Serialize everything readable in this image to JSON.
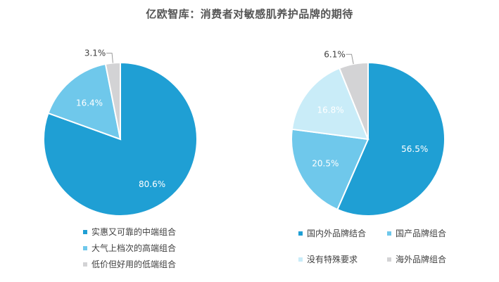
{
  "title": "亿欧智库：消费者对敏感肌养护品牌的期待",
  "chart_data": [
    {
      "type": "pie",
      "title": "",
      "start_angle_deg": 0,
      "direction": "clockwise",
      "categories": [
        "实惠又可靠的中端组合",
        "大气上档次的高端组合",
        "低价但好用的低端组合"
      ],
      "values": [
        80.6,
        16.4,
        3.1
      ],
      "labels": [
        "80.6%",
        "16.4%",
        "3.1%"
      ],
      "colors": [
        "#1f9fd4",
        "#6fc8eb",
        "#d3d3d5"
      ],
      "label_colors": [
        "#ffffff",
        "#ffffff",
        "#404040"
      ],
      "legend_placement": "bottom"
    },
    {
      "type": "pie",
      "title": "",
      "start_angle_deg": 0,
      "direction": "clockwise",
      "categories": [
        "国内外品牌结合",
        "国产品牌组合",
        "没有特殊要求",
        "海外品牌组合"
      ],
      "values": [
        56.5,
        20.5,
        16.8,
        6.1
      ],
      "labels": [
        "56.5%",
        "20.5%",
        "16.8%",
        "6.1%"
      ],
      "colors": [
        "#1f9fd4",
        "#6fc8eb",
        "#c9ecf8",
        "#d3d3d5"
      ],
      "label_colors": [
        "#ffffff",
        "#ffffff",
        "#ffffff",
        "#404040"
      ],
      "legend_placement": "bottom"
    }
  ]
}
